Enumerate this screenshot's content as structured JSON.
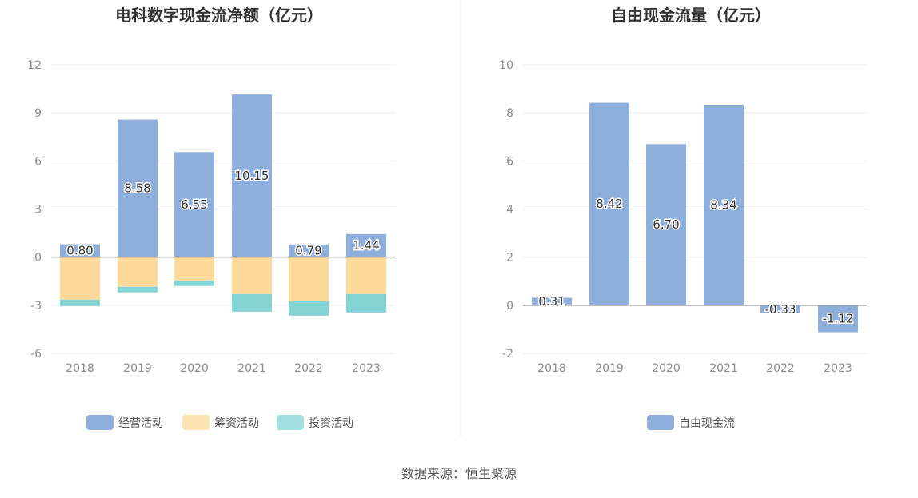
{
  "source_text": "数据来源：恒生聚源",
  "chart_data": [
    {
      "type": "bar",
      "stacked": true,
      "title": "电科数字现金流净额（亿元）",
      "categories": [
        "2018",
        "2019",
        "2020",
        "2021",
        "2022",
        "2023"
      ],
      "ylim": [
        -6,
        12
      ],
      "yticks": [
        -6,
        -3,
        0,
        3,
        6,
        9,
        12
      ],
      "grid": true,
      "legend_position": "bottom",
      "series": [
        {
          "name": "经营活动",
          "color": "#8eaedb",
          "values": [
            0.8,
            8.58,
            6.55,
            10.15,
            0.79,
            1.44
          ],
          "labels": [
            "0.80",
            "8.58",
            "6.55",
            "10.15",
            "0.79",
            "1.44"
          ]
        },
        {
          "name": "筹资活动",
          "color": "#fdd99a",
          "values": [
            -2.65,
            -1.85,
            -1.45,
            -2.3,
            -2.75,
            -2.3
          ]
        },
        {
          "name": "投资活动",
          "color": "#84d4d6",
          "values": [
            -0.4,
            -0.35,
            -0.35,
            -1.1,
            -0.9,
            -1.15
          ]
        }
      ]
    },
    {
      "type": "bar",
      "title": "自由现金流量（亿元）",
      "categories": [
        "2018",
        "2019",
        "2020",
        "2021",
        "2022",
        "2023"
      ],
      "ylim": [
        -2,
        10
      ],
      "yticks": [
        -2,
        0,
        2,
        4,
        6,
        8,
        10
      ],
      "grid": true,
      "legend_position": "bottom",
      "series": [
        {
          "name": "自由现金流",
          "color": "#8eaedb",
          "values": [
            0.31,
            8.42,
            6.7,
            8.34,
            -0.33,
            -1.12
          ],
          "labels": [
            "0.31",
            "8.42",
            "6.70",
            "8.34",
            "-0.33",
            "-1.12"
          ]
        }
      ]
    }
  ]
}
